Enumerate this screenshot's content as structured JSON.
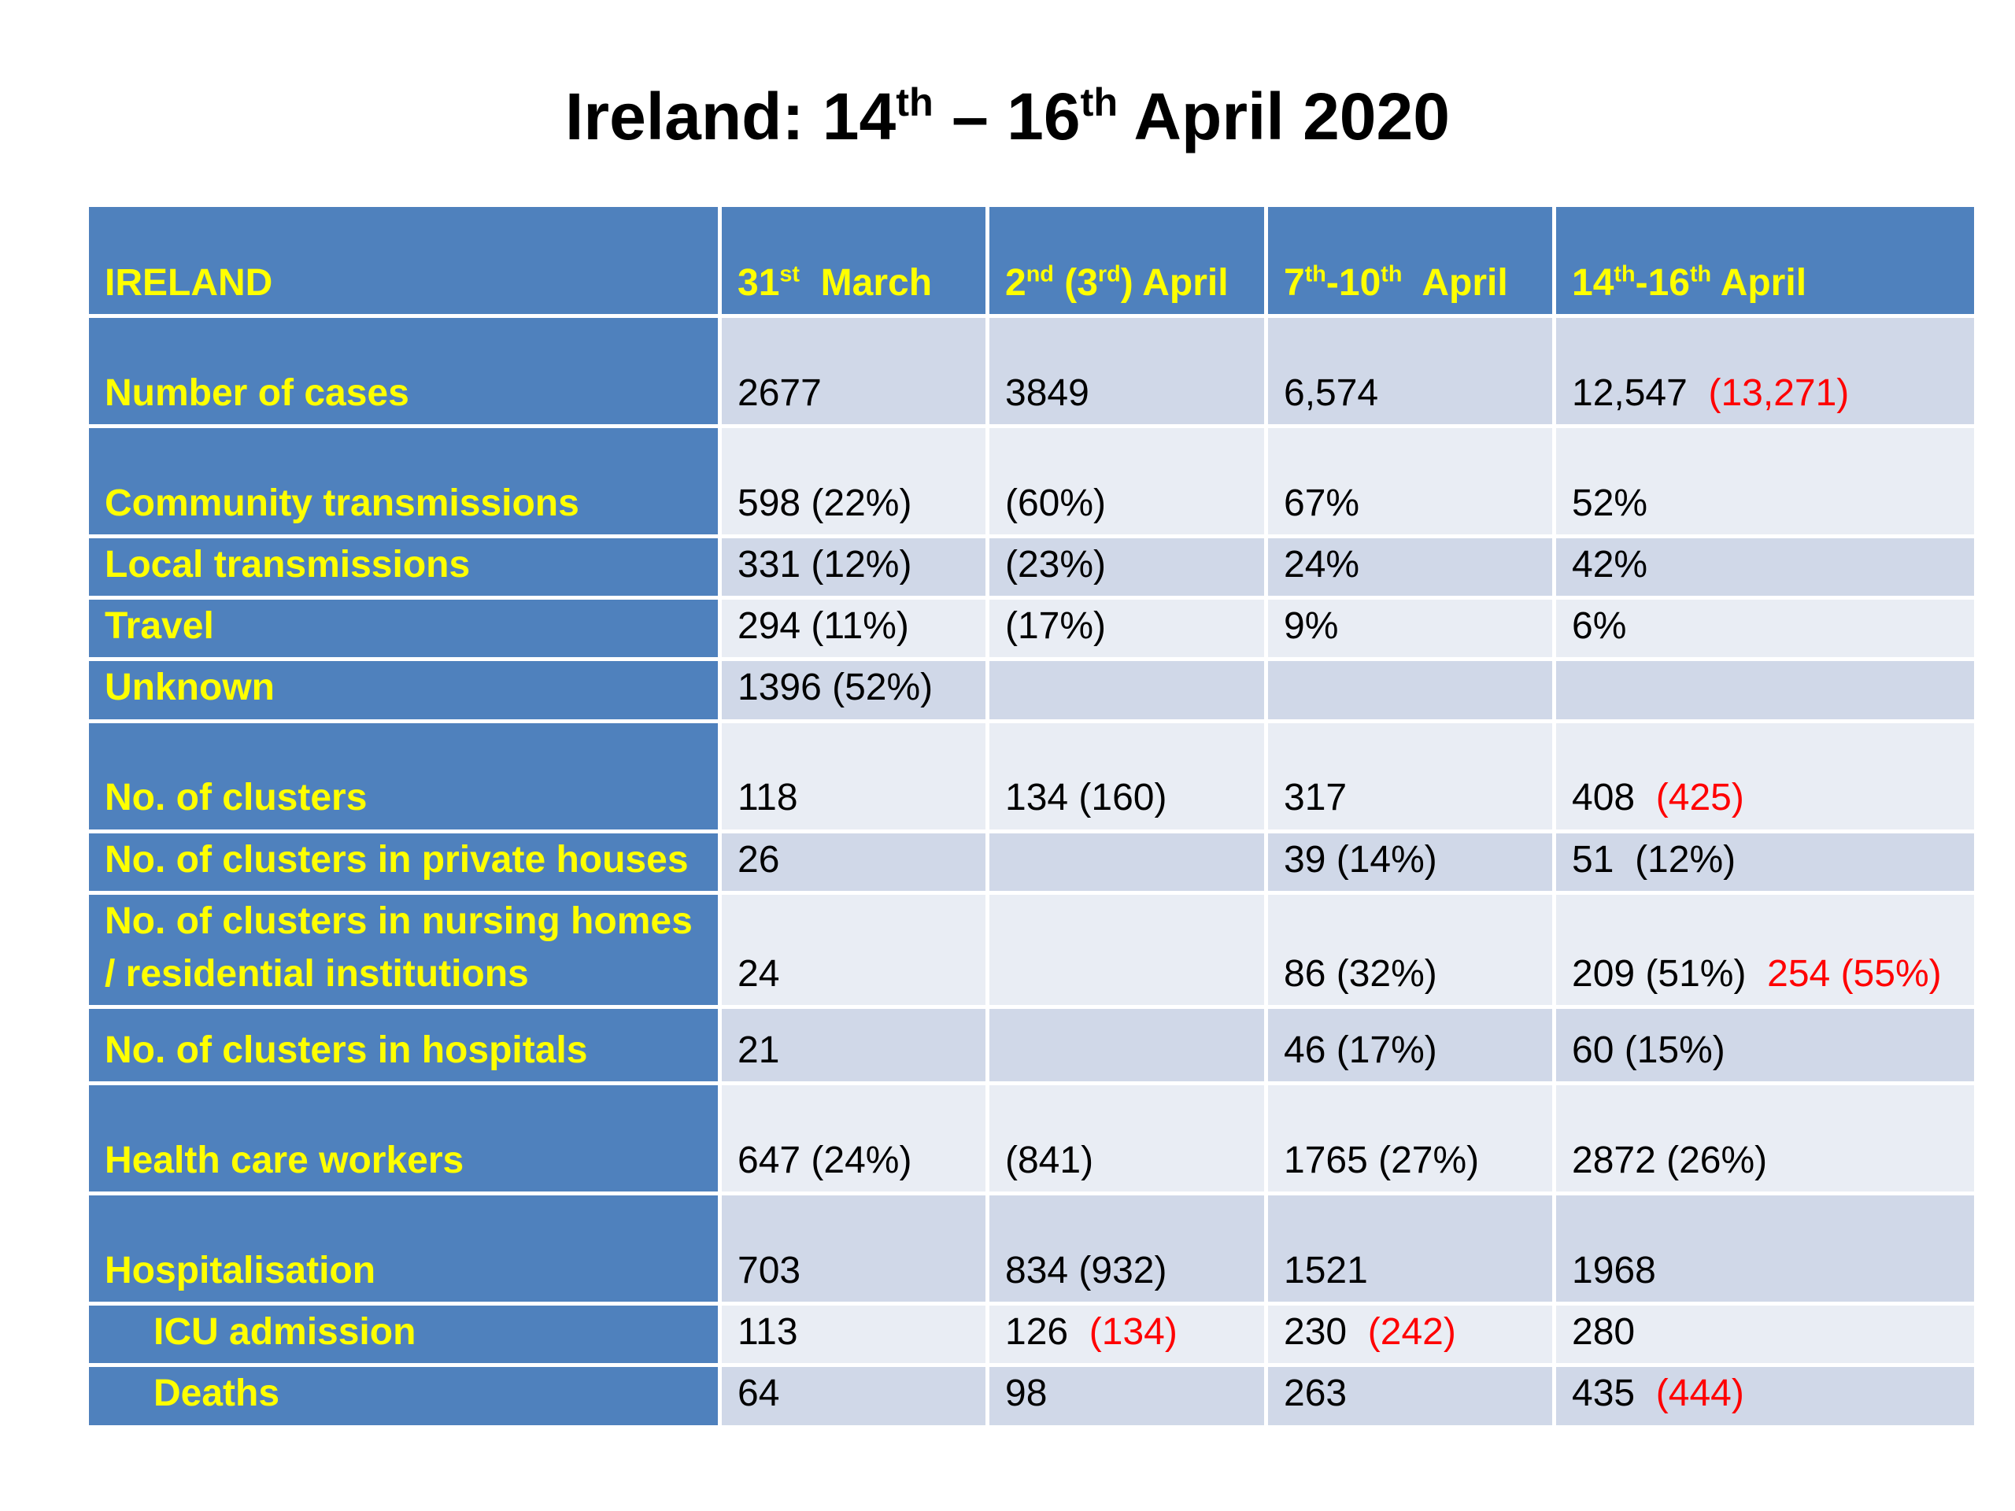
{
  "header": {
    "title": [
      "Ireland: 14",
      {
        "text": "th",
        "sup": true
      },
      " – 16",
      {
        "text": "th",
        "sup": true
      },
      " April 2020"
    ]
  },
  "table": {
    "columns": [
      [
        "IRELAND"
      ],
      [
        "31",
        {
          "text": "st",
          "sup": true
        },
        "  March"
      ],
      [
        "2",
        {
          "text": "nd",
          "sup": true
        },
        " (3",
        {
          "text": "rd",
          "sup": true
        },
        ") April"
      ],
      [
        "7",
        {
          "text": "th",
          "sup": true
        },
        "-10",
        {
          "text": "th",
          "sup": true
        },
        "  April"
      ],
      [
        "14",
        {
          "text": "th",
          "sup": true
        },
        "-16",
        {
          "text": "th",
          "sup": true
        },
        " April"
      ]
    ],
    "rows": [
      {
        "label": "Number of cases",
        "cells": [
          [
            "2677"
          ],
          [
            "3849"
          ],
          [
            "6,574"
          ],
          [
            "12,547",
            {
              "text": "(13,271)",
              "color": "#ff0000"
            }
          ]
        ]
      },
      {
        "label": "Community transmissions",
        "cells": [
          [
            "598 (22%)"
          ],
          [
            "(60%)"
          ],
          [
            "67%"
          ],
          [
            "52%"
          ]
        ]
      },
      {
        "label": "Local transmissions",
        "cells": [
          [
            "331 (12%)"
          ],
          [
            "(23%)"
          ],
          [
            "24%"
          ],
          [
            "42%"
          ]
        ]
      },
      {
        "label": "Travel",
        "cells": [
          [
            "294 (11%)"
          ],
          [
            "(17%)"
          ],
          [
            "9%"
          ],
          [
            "6%"
          ]
        ]
      },
      {
        "label": "Unknown",
        "cells": [
          [
            "1396 (52%)"
          ],
          [],
          [],
          []
        ]
      },
      {
        "label": "No. of clusters",
        "cells": [
          [
            "118"
          ],
          [
            "134 (160)"
          ],
          [
            "317"
          ],
          [
            "408",
            {
              "text": "(425)",
              "color": "#ff0000"
            }
          ]
        ]
      },
      {
        "label": "No. of clusters in private houses",
        "cells": [
          [
            "26"
          ],
          [],
          [
            "39 (14%)"
          ],
          [
            "51  (12%)"
          ]
        ]
      },
      {
        "label": "No. of clusters in nursing homes / residential institutions",
        "cells": [
          [
            "24"
          ],
          [],
          [
            "86 (32%)"
          ],
          [
            "209 (51%)",
            {
              "text": "254 (55%)",
              "color": "#ff0000"
            }
          ]
        ]
      },
      {
        "label": "No. of clusters in hospitals",
        "cells": [
          [
            "21"
          ],
          [],
          [
            "46 (17%)"
          ],
          [
            "60 (15%)"
          ]
        ]
      },
      {
        "label": "Health care workers",
        "cells": [
          [
            "647 (24%)"
          ],
          [
            "(841)"
          ],
          [
            "1765 (27%)"
          ],
          [
            "2872 (26%)"
          ]
        ]
      },
      {
        "label": "Hospitalisation",
        "cells": [
          [
            "703"
          ],
          [
            "834 (932)"
          ],
          [
            "1521"
          ],
          [
            "1968"
          ]
        ]
      },
      {
        "label": "ICU admission",
        "cells": [
          [
            "113"
          ],
          [
            "126",
            {
              "text": "(134)",
              "color": "#ff0000"
            }
          ],
          [
            "230",
            {
              "text": "(242)",
              "color": "#ff0000"
            }
          ],
          [
            "280"
          ]
        ]
      },
      {
        "label": "Deaths",
        "cells": [
          [
            "64"
          ],
          [
            "98"
          ],
          [
            "263"
          ],
          [
            "435",
            {
              "text": "(444)",
              "color": "#ff0000"
            }
          ]
        ]
      }
    ]
  }
}
